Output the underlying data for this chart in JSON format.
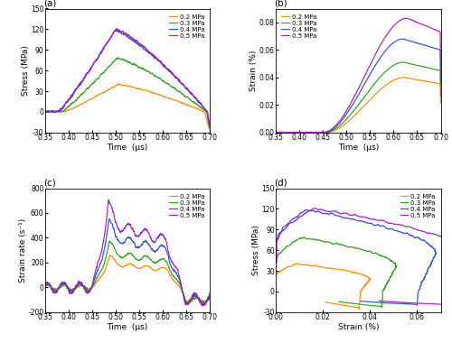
{
  "colors": {
    "0.2 MPa": "#FF8C00",
    "0.3 MPa": "#32A020",
    "0.4 MPa": "#3050D0",
    "0.5 MPa": "#A020C0"
  },
  "labels": [
    "0.2 MPa",
    "0.3 MPa",
    "0.4 MPa",
    "0.5 MPa"
  ],
  "time_range": [
    0.35,
    0.7
  ],
  "panel_labels": [
    "(a)",
    "(b)",
    "(c)",
    "(d)"
  ],
  "xlabels": {
    "a": "Time  (μs)",
    "b": "Time  (μs)",
    "c": "Time  (μs)",
    "d": "Strain (%)"
  },
  "ylabels": {
    "a": "Stress (MPa)",
    "b": "Strain (%)",
    "c": "Strain rate (s⁻¹)",
    "d": "Stress (MPa)"
  },
  "ylims": {
    "a": [
      -30,
      150
    ],
    "b": [
      0,
      0.09
    ],
    "c": [
      -200,
      800
    ],
    "d": [
      -30,
      150
    ]
  },
  "yticks": {
    "a": [
      -30,
      0,
      30,
      60,
      90,
      120,
      150
    ],
    "b": [
      0.0,
      0.02,
      0.04,
      0.06,
      0.08
    ],
    "c": [
      -200,
      0,
      200,
      400,
      600,
      800
    ],
    "d": [
      -30,
      0,
      30,
      60,
      90,
      120,
      150
    ]
  },
  "xticks_time": [
    0.35,
    0.4,
    0.45,
    0.5,
    0.55,
    0.6,
    0.65,
    0.7
  ],
  "xticks_strain_d": [
    0.0,
    0.02,
    0.04,
    0.06
  ],
  "xlim_d": [
    0.0,
    0.07
  ]
}
